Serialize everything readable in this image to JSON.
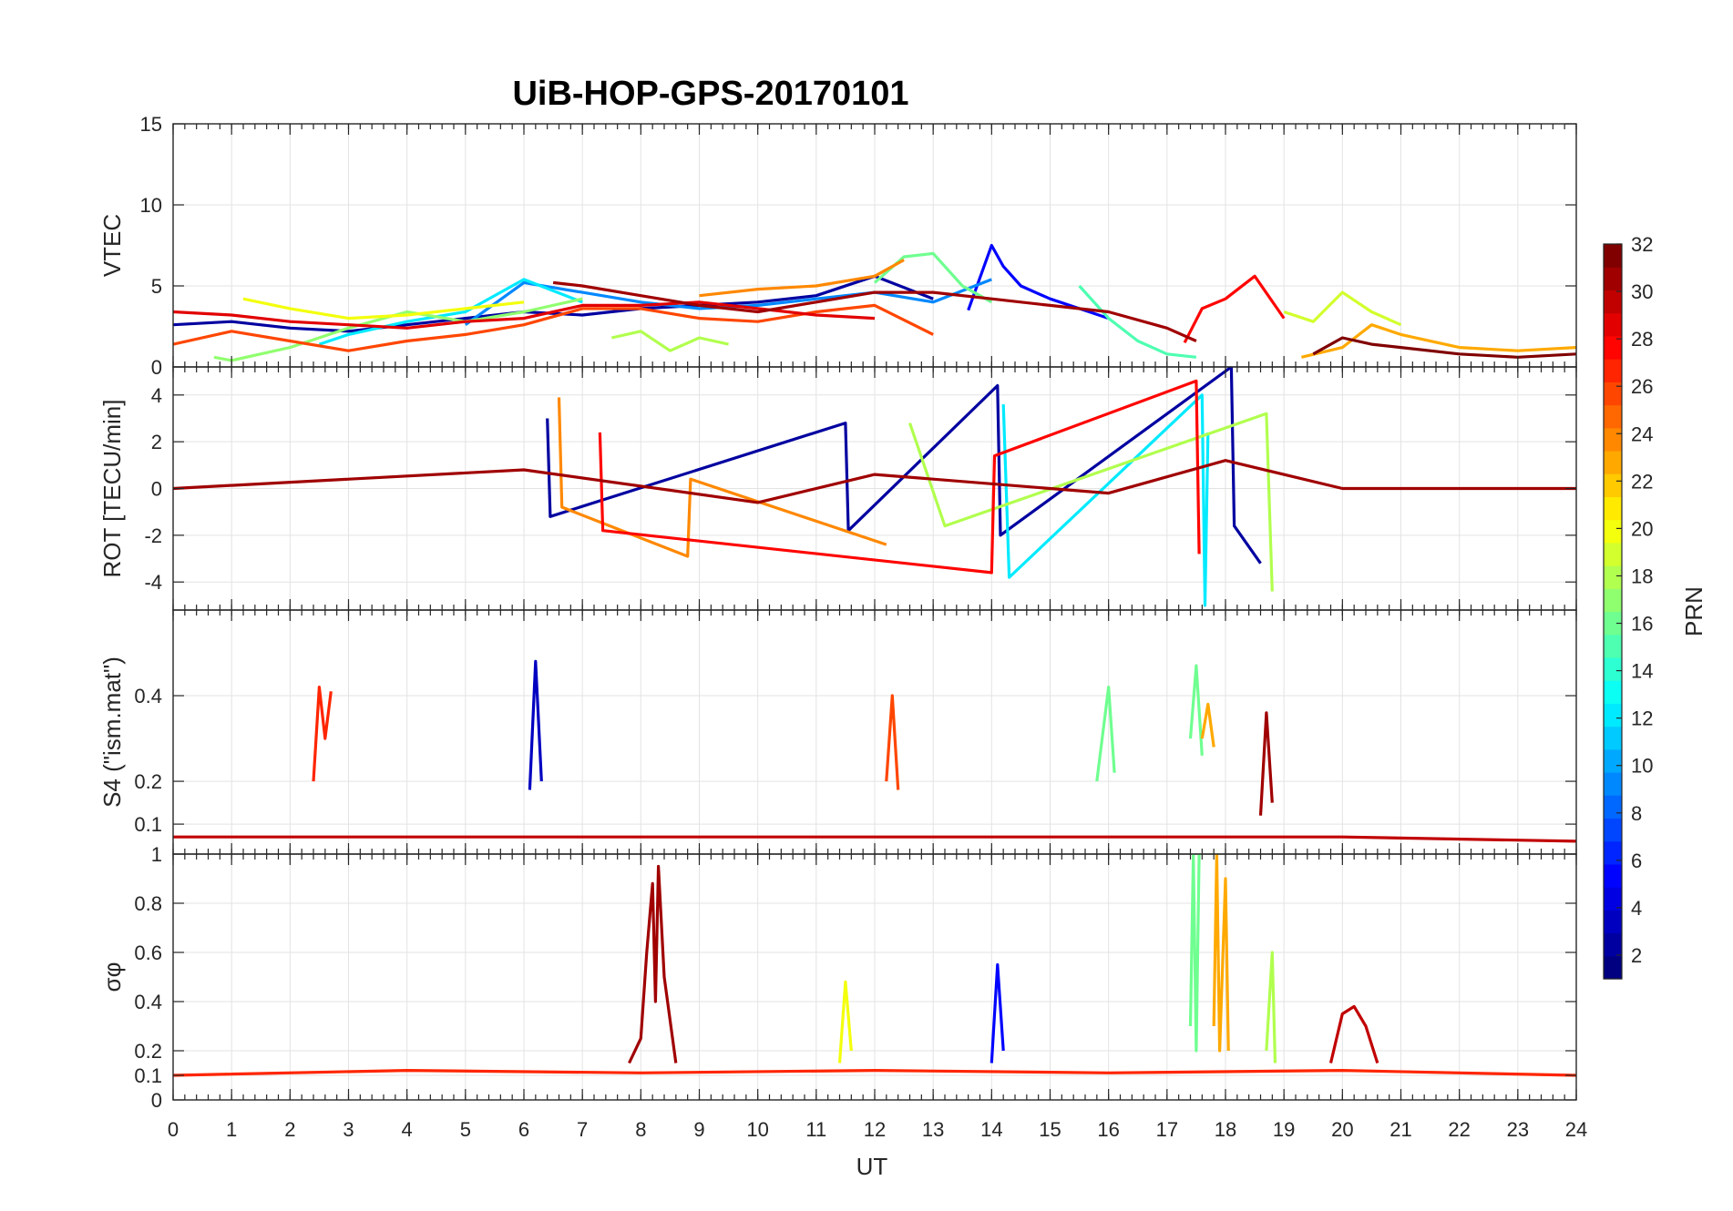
{
  "chart_data": {
    "type": "line",
    "title": "UiB-HOP-GPS-20170101",
    "xlabel": "UT",
    "xlim": [
      0,
      24
    ],
    "xticks": [
      0,
      1,
      2,
      3,
      4,
      5,
      6,
      7,
      8,
      9,
      10,
      11,
      12,
      13,
      14,
      15,
      16,
      17,
      18,
      19,
      20,
      21,
      22,
      23,
      24
    ],
    "grid": true,
    "colorbar": {
      "label": "PRN",
      "range": [
        1,
        32
      ],
      "ticks": [
        2,
        4,
        6,
        8,
        10,
        12,
        14,
        16,
        18,
        20,
        22,
        24,
        26,
        28,
        30,
        32
      ],
      "colormap": "jet",
      "placement": "right"
    },
    "panels": [
      {
        "ylabel": "VTEC",
        "ylim": [
          0,
          15
        ],
        "yticks": [
          0,
          5,
          10,
          15
        ],
        "series": [
          {
            "prn": 2,
            "x": [
              0,
              1,
              2,
              3,
              4,
              5,
              6,
              7,
              8,
              9,
              10,
              11,
              12,
              13
            ],
            "y": [
              2.6,
              2.8,
              2.4,
              2.2,
              2.6,
              3.0,
              3.4,
              3.2,
              3.6,
              3.8,
              4.0,
              4.4,
              5.6,
              4.2
            ]
          },
          {
            "prn": 5,
            "x": [
              13.6,
              14,
              14.2,
              14.5,
              15,
              15.5,
              16
            ],
            "y": [
              3.5,
              7.5,
              6.2,
              5.0,
              4.2,
              3.6,
              3.0
            ]
          },
          {
            "prn": 9,
            "x": [
              5,
              6,
              7,
              8,
              9,
              10,
              11,
              12,
              13,
              14
            ],
            "y": [
              2.6,
              5.2,
              4.6,
              4.0,
              3.6,
              3.8,
              4.2,
              4.6,
              4.0,
              5.4
            ]
          },
          {
            "prn": 12,
            "x": [
              2.5,
              3,
              4,
              5,
              6,
              7
            ],
            "y": [
              1.4,
              2.0,
              2.8,
              3.4,
              5.4,
              4.0
            ]
          },
          {
            "prn": 15,
            "x": [
              15.5,
              16,
              16.5,
              17,
              17.5
            ],
            "y": [
              5.0,
              3.0,
              1.6,
              0.8,
              0.6
            ]
          },
          {
            "prn": 17,
            "x": [
              0.7,
              1,
              2,
              3,
              4,
              5,
              6,
              7
            ],
            "y": [
              0.6,
              0.4,
              1.2,
              2.4,
              3.4,
              2.8,
              3.4,
              4.2
            ]
          },
          {
            "prn": 18,
            "x": [
              7.5,
              8,
              8.5,
              9,
              9.5
            ],
            "y": [
              1.8,
              2.2,
              1.0,
              1.8,
              1.4
            ]
          },
          {
            "prn": 19,
            "x": [
              19,
              19.5,
              20,
              20.5,
              21
            ],
            "y": [
              3.4,
              2.8,
              4.6,
              3.4,
              2.6
            ]
          },
          {
            "prn": 20,
            "x": [
              1.2,
              2,
              3,
              4,
              5,
              6
            ],
            "y": [
              4.2,
              3.6,
              3.0,
              3.2,
              3.6,
              4.0
            ]
          },
          {
            "prn": 16,
            "x": [
              12,
              12.5,
              13,
              13.5,
              14
            ],
            "y": [
              5.2,
              6.8,
              7.0,
              5.0,
              4.0
            ]
          },
          {
            "prn": 24,
            "x": [
              9,
              10,
              11,
              12,
              12.5
            ],
            "y": [
              4.4,
              4.8,
              5.0,
              5.6,
              6.6
            ]
          },
          {
            "prn": 23,
            "x": [
              19.3,
              20,
              20.5,
              21,
              22,
              23,
              24
            ],
            "y": [
              0.6,
              1.2,
              2.6,
              2.0,
              1.2,
              1.0,
              1.2
            ]
          },
          {
            "prn": 26,
            "x": [
              0,
              1,
              2,
              3,
              4,
              5,
              6,
              7,
              8,
              9,
              10,
              11,
              12,
              13
            ],
            "y": [
              1.4,
              2.2,
              1.6,
              1.0,
              1.6,
              2.0,
              2.6,
              3.6,
              3.6,
              3.0,
              2.8,
              3.4,
              3.8,
              2.0
            ]
          },
          {
            "prn": 29,
            "x": [
              0,
              1,
              2,
              3,
              4,
              5,
              6,
              7,
              8,
              9,
              10,
              11,
              12
            ],
            "y": [
              3.4,
              3.2,
              2.8,
              2.6,
              2.4,
              2.8,
              3.0,
              3.8,
              3.8,
              4.0,
              3.6,
              3.2,
              3.0
            ]
          },
          {
            "prn": 28,
            "x": [
              17.3,
              17.6,
              18,
              18.5,
              19
            ],
            "y": [
              1.5,
              3.6,
              4.2,
              5.6,
              3.0
            ]
          },
          {
            "prn": 31,
            "x": [
              6.5,
              7,
              8,
              9,
              10,
              11,
              12,
              13,
              14,
              15,
              16,
              17,
              17.5
            ],
            "y": [
              5.2,
              5.0,
              4.4,
              3.8,
              3.4,
              4.0,
              4.6,
              4.6,
              4.2,
              3.8,
              3.4,
              2.4,
              1.6
            ]
          },
          {
            "prn": 32,
            "x": [
              19.5,
              20,
              20.5,
              21,
              22,
              23,
              24
            ],
            "y": [
              0.8,
              1.8,
              1.4,
              1.2,
              0.8,
              0.6,
              0.8
            ]
          }
        ]
      },
      {
        "ylabel": "ROT [TECU/min]",
        "ylim": [
          -5.2,
          5.2
        ],
        "yticks": [
          -4,
          -2,
          0,
          2,
          4
        ],
        "series": [
          {
            "prn": 2,
            "x": [
              6.4,
              6.45,
              11.5,
              11.55,
              14.1,
              14.15,
              18.1,
              18.15,
              18.6
            ],
            "y": [
              3.0,
              -1.2,
              2.8,
              -1.8,
              4.4,
              -2.0,
              5.2,
              -1.6,
              -3.2
            ]
          },
          {
            "prn": 12,
            "x": [
              14.2,
              14.3,
              17.6,
              17.65,
              17.7
            ],
            "y": [
              3.6,
              -3.8,
              4.0,
              -5.0,
              2.4
            ]
          },
          {
            "prn": 18,
            "x": [
              12.6,
              13.2,
              18.7,
              18.8
            ],
            "y": [
              2.8,
              -1.6,
              3.2,
              -4.4
            ]
          },
          {
            "prn": 24,
            "x": [
              6.6,
              6.65,
              8.8,
              8.85,
              12.2
            ],
            "y": [
              3.9,
              -0.8,
              -2.9,
              0.4,
              -2.4
            ]
          },
          {
            "prn": 28,
            "x": [
              7.3,
              7.35,
              14.0,
              14.05,
              17.5,
              17.55
            ],
            "y": [
              2.4,
              -1.8,
              -3.6,
              1.4,
              4.6,
              -2.8
            ]
          },
          {
            "prn": 31,
            "x": [
              0,
              6,
              10,
              12,
              16,
              18,
              20,
              24
            ],
            "y": [
              0,
              0.8,
              -0.6,
              0.6,
              -0.2,
              1.2,
              0,
              0
            ]
          }
        ]
      },
      {
        "ylabel": "S4 (\"ism.mat\")",
        "ylim": [
          0.03,
          0.6
        ],
        "yticks": [
          0.1,
          0.2,
          0.4
        ],
        "series": [
          {
            "prn": 3,
            "x": [
              6.1,
              6.2,
              6.3
            ],
            "y": [
              0.18,
              0.48,
              0.2
            ]
          },
          {
            "prn": 16,
            "x": [
              17.4,
              17.5,
              17.6
            ],
            "y": [
              0.3,
              0.47,
              0.26
            ]
          },
          {
            "prn": 27,
            "x": [
              2.4,
              2.5,
              2.6,
              2.7
            ],
            "y": [
              0.2,
              0.42,
              0.3,
              0.41
            ]
          },
          {
            "prn": 26,
            "x": [
              12.2,
              12.3,
              12.4
            ],
            "y": [
              0.2,
              0.4,
              0.18
            ]
          },
          {
            "prn": 23,
            "x": [
              17.6,
              17.7,
              17.8
            ],
            "y": [
              0.3,
              0.38,
              0.28
            ]
          },
          {
            "prn": 16,
            "x": [
              15.8,
              16.0,
              16.1
            ],
            "y": [
              0.2,
              0.42,
              0.22
            ]
          },
          {
            "prn": 31,
            "x": [
              18.6,
              18.7,
              18.8
            ],
            "y": [
              0.12,
              0.36,
              0.15
            ]
          },
          {
            "prn": 30,
            "x": [
              0,
              4,
              8,
              12,
              16,
              20,
              24
            ],
            "y": [
              0.07,
              0.07,
              0.07,
              0.07,
              0.07,
              0.07,
              0.06
            ]
          }
        ]
      },
      {
        "ylabel": "σφ",
        "ylim": [
          0,
          1
        ],
        "yticks": [
          0,
          0.1,
          0.2,
          0.4,
          0.6,
          0.8,
          1
        ],
        "series": [
          {
            "prn": 31,
            "x": [
              7.8,
              8.0,
              8.1,
              8.2,
              8.25,
              8.3,
              8.4,
              8.6
            ],
            "y": [
              0.15,
              0.25,
              0.6,
              0.88,
              0.4,
              0.95,
              0.5,
              0.15
            ]
          },
          {
            "prn": 16,
            "x": [
              17.4,
              17.45,
              17.5,
              17.55
            ],
            "y": [
              0.3,
              1.0,
              0.2,
              1.0
            ]
          },
          {
            "prn": 23,
            "x": [
              17.8,
              17.85,
              17.9,
              18.0,
              18.05
            ],
            "y": [
              0.3,
              1.0,
              0.2,
              0.9,
              0.2
            ]
          },
          {
            "prn": 18,
            "x": [
              18.7,
              18.8,
              18.85
            ],
            "y": [
              0.2,
              0.6,
              0.15
            ]
          },
          {
            "prn": 5,
            "x": [
              14.0,
              14.1,
              14.2
            ],
            "y": [
              0.15,
              0.55,
              0.2
            ]
          },
          {
            "prn": 20,
            "x": [
              11.4,
              11.5,
              11.6
            ],
            "y": [
              0.15,
              0.48,
              0.2
            ]
          },
          {
            "prn": 30,
            "x": [
              19.8,
              20.0,
              20.2,
              20.4,
              20.6
            ],
            "y": [
              0.15,
              0.35,
              0.38,
              0.3,
              0.15
            ]
          },
          {
            "prn": 27,
            "x": [
              0,
              4,
              8,
              12,
              16,
              20,
              24
            ],
            "y": [
              0.1,
              0.12,
              0.11,
              0.12,
              0.11,
              0.12,
              0.1
            ]
          }
        ]
      }
    ]
  }
}
